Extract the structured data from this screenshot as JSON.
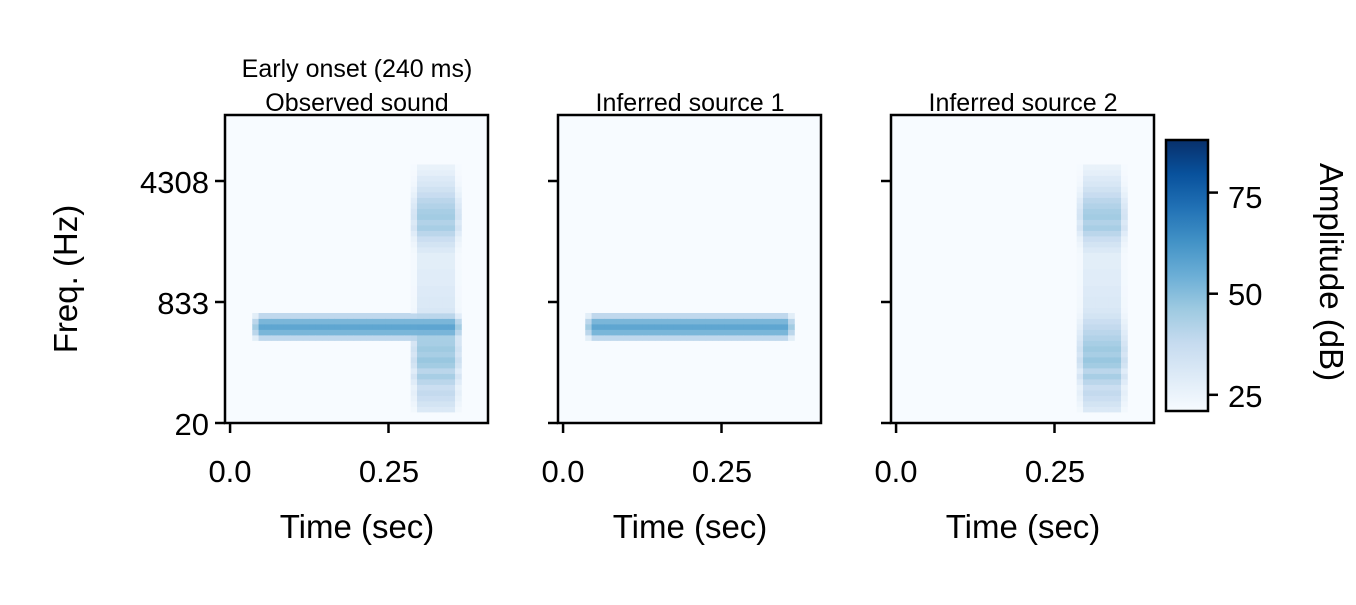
{
  "chart_data": {
    "type": "heatmap",
    "suptitle": "Early onset (240 ms)",
    "panels": [
      {
        "title": "Observed sound",
        "sources": [
          0,
          1
        ]
      },
      {
        "title": "Inferred source 1",
        "sources": [
          0
        ]
      },
      {
        "title": "Inferred source 2",
        "sources": [
          1
        ]
      }
    ],
    "xlabel": "Time (sec)",
    "ylabel": "Freq. (Hz)",
    "xlim": [
      -0.008,
      0.407
    ],
    "xticks": {
      "values": [
        0.0,
        0.25
      ],
      "labels": [
        "0.0",
        "0.25"
      ]
    },
    "n_channels": 56,
    "yticks": {
      "channels": [
        0,
        22,
        44
      ],
      "labels": [
        "20",
        "833",
        "4308"
      ]
    },
    "time_bin_sec": 0.01,
    "background_db": 21,
    "sources": [
      {
        "name": "Inferred source 1",
        "type": "tone",
        "t_start": 0.05,
        "t_end": 0.35,
        "channel": 17,
        "amplitude_db": 57
      },
      {
        "name": "Inferred source 2",
        "type": "noise",
        "t_start": 0.3,
        "t_end": 0.35,
        "channel_start": 2,
        "amplitude_profile_db": [
          30,
          33,
          36,
          38,
          36,
          40,
          44,
          40,
          45,
          47,
          44,
          46,
          44,
          42,
          40,
          38,
          36,
          33,
          31,
          30,
          30,
          29,
          29,
          28,
          28,
          28,
          27,
          27,
          27,
          30,
          33,
          36,
          40,
          44,
          42,
          45,
          44,
          42,
          40,
          37,
          34,
          31,
          29,
          26,
          24
        ]
      }
    ],
    "colorbar": {
      "label": "Amplitude (dB)",
      "range": [
        21,
        88
      ],
      "ticks": [
        25,
        50,
        75
      ],
      "tick_labels": [
        "25",
        "50",
        "75"
      ],
      "colormap": [
        "#f7fbff",
        "#deebf7",
        "#c6dbef",
        "#9ecae1",
        "#6baed6",
        "#4292c6",
        "#2171b5",
        "#08519c",
        "#08306b"
      ]
    }
  }
}
